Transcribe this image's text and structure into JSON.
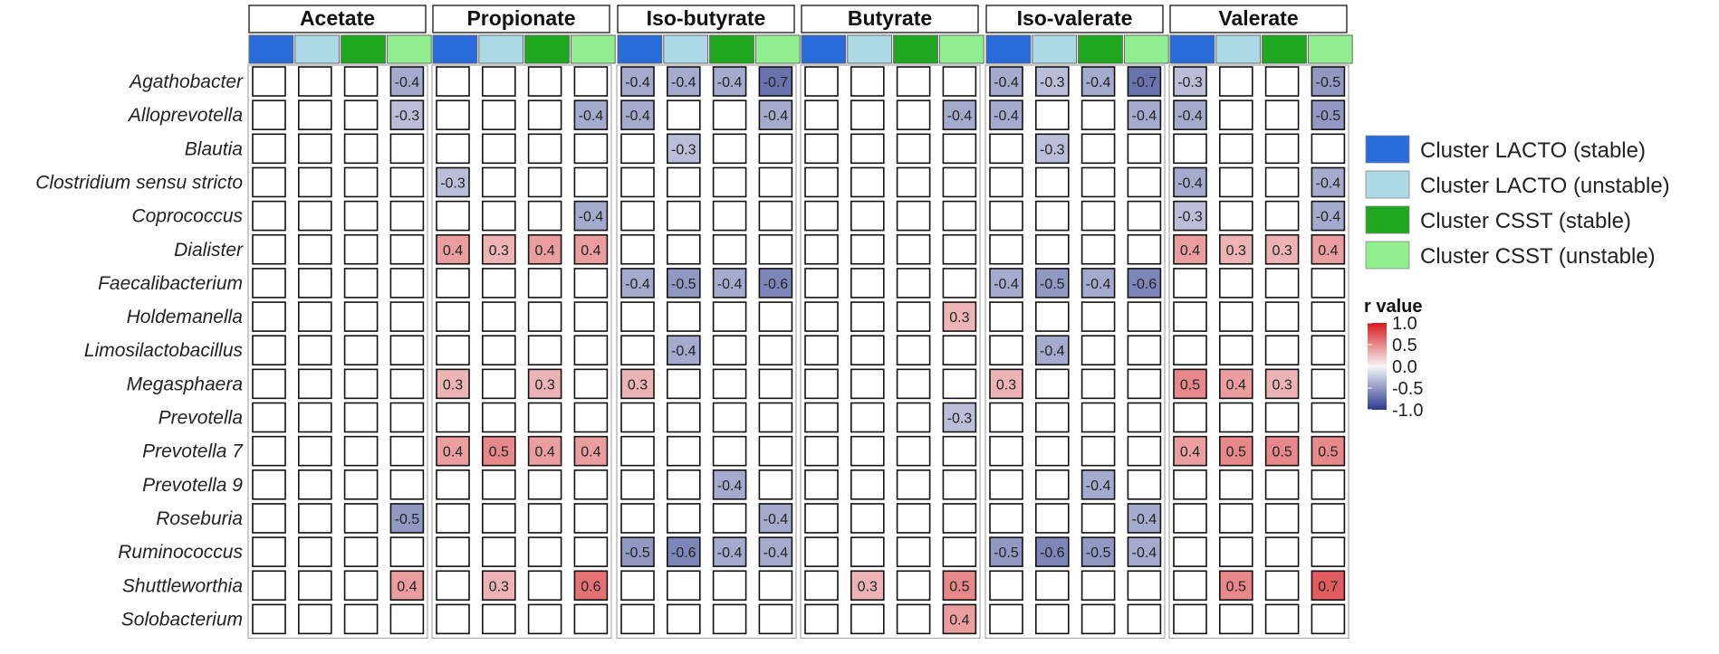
{
  "chart_data": {
    "type": "heatmap",
    "panels": [
      "Acetate",
      "Propionate",
      "Iso-butyrate",
      "Butyrate",
      "Iso-valerate",
      "Valerate"
    ],
    "clusters": [
      {
        "label": "Cluster LACTO (stable)",
        "color": "#2a6bdb"
      },
      {
        "label": "Cluster LACTO (unstable)",
        "color": "#add8e6"
      },
      {
        "label": "Cluster CSST (stable)",
        "color": "#1fa81f"
      },
      {
        "label": "Cluster CSST (unstable)",
        "color": "#90ee90"
      }
    ],
    "rows": [
      "Agathobacter",
      "Alloprevotella",
      "Blautia",
      "Clostridium sensu stricto",
      "Coprococcus",
      "Dialister",
      "Faecalibacterium",
      "Holdemanella",
      "Limosilactobacillus",
      "Megasphaera",
      "Prevotella",
      "Prevotella 7",
      "Prevotella 9",
      "Roseburia",
      "Ruminococcus",
      "Shuttleworthia",
      "Solobacterium"
    ],
    "values": [
      [
        [
          null,
          null,
          null,
          -0.4
        ],
        [
          null,
          null,
          null,
          null
        ],
        [
          -0.4,
          -0.4,
          -0.4,
          -0.7
        ],
        [
          null,
          null,
          null,
          null
        ],
        [
          -0.4,
          -0.3,
          -0.4,
          -0.7
        ],
        [
          -0.3,
          null,
          null,
          -0.5
        ]
      ],
      [
        [
          null,
          null,
          null,
          -0.3
        ],
        [
          null,
          null,
          null,
          -0.4
        ],
        [
          -0.4,
          null,
          null,
          -0.4
        ],
        [
          null,
          null,
          null,
          -0.4
        ],
        [
          -0.4,
          null,
          null,
          -0.4
        ],
        [
          -0.4,
          null,
          null,
          -0.5
        ]
      ],
      [
        [
          null,
          null,
          null,
          null
        ],
        [
          null,
          null,
          null,
          null
        ],
        [
          null,
          -0.3,
          null,
          null
        ],
        [
          null,
          null,
          null,
          null
        ],
        [
          null,
          -0.3,
          null,
          null
        ],
        [
          null,
          null,
          null,
          null
        ]
      ],
      [
        [
          null,
          null,
          null,
          null
        ],
        [
          -0.3,
          null,
          null,
          null
        ],
        [
          null,
          null,
          null,
          null
        ],
        [
          null,
          null,
          null,
          null
        ],
        [
          null,
          null,
          null,
          null
        ],
        [
          -0.4,
          null,
          null,
          -0.4
        ]
      ],
      [
        [
          null,
          null,
          null,
          null
        ],
        [
          null,
          null,
          null,
          -0.4
        ],
        [
          null,
          null,
          null,
          null
        ],
        [
          null,
          null,
          null,
          null
        ],
        [
          null,
          null,
          null,
          null
        ],
        [
          -0.3,
          null,
          null,
          -0.4
        ]
      ],
      [
        [
          null,
          null,
          null,
          null
        ],
        [
          0.4,
          0.3,
          0.4,
          0.4
        ],
        [
          null,
          null,
          null,
          null
        ],
        [
          null,
          null,
          null,
          null
        ],
        [
          null,
          null,
          null,
          null
        ],
        [
          0.4,
          0.3,
          0.3,
          0.4
        ]
      ],
      [
        [
          null,
          null,
          null,
          null
        ],
        [
          null,
          null,
          null,
          null
        ],
        [
          -0.4,
          -0.5,
          -0.4,
          -0.6
        ],
        [
          null,
          null,
          null,
          null
        ],
        [
          -0.4,
          -0.5,
          -0.4,
          -0.6
        ],
        [
          null,
          null,
          null,
          null
        ]
      ],
      [
        [
          null,
          null,
          null,
          null
        ],
        [
          null,
          null,
          null,
          null
        ],
        [
          null,
          null,
          null,
          null
        ],
        [
          null,
          null,
          null,
          0.3
        ],
        [
          null,
          null,
          null,
          null
        ],
        [
          null,
          null,
          null,
          null
        ]
      ],
      [
        [
          null,
          null,
          null,
          null
        ],
        [
          null,
          null,
          null,
          null
        ],
        [
          null,
          -0.4,
          null,
          null
        ],
        [
          null,
          null,
          null,
          null
        ],
        [
          null,
          -0.4,
          null,
          null
        ],
        [
          null,
          null,
          null,
          null
        ]
      ],
      [
        [
          null,
          null,
          null,
          null
        ],
        [
          0.3,
          null,
          0.3,
          null
        ],
        [
          0.3,
          null,
          null,
          null
        ],
        [
          null,
          null,
          null,
          null
        ],
        [
          0.3,
          null,
          null,
          null
        ],
        [
          0.5,
          0.4,
          0.3,
          null
        ]
      ],
      [
        [
          null,
          null,
          null,
          null
        ],
        [
          null,
          null,
          null,
          null
        ],
        [
          null,
          null,
          null,
          null
        ],
        [
          null,
          null,
          null,
          -0.3
        ],
        [
          null,
          null,
          null,
          null
        ],
        [
          null,
          null,
          null,
          null
        ]
      ],
      [
        [
          null,
          null,
          null,
          null
        ],
        [
          0.4,
          0.5,
          0.4,
          0.4
        ],
        [
          null,
          null,
          null,
          null
        ],
        [
          null,
          null,
          null,
          null
        ],
        [
          null,
          null,
          null,
          null
        ],
        [
          0.4,
          0.5,
          0.5,
          0.5
        ]
      ],
      [
        [
          null,
          null,
          null,
          null
        ],
        [
          null,
          null,
          null,
          null
        ],
        [
          null,
          null,
          -0.4,
          null
        ],
        [
          null,
          null,
          null,
          null
        ],
        [
          null,
          null,
          -0.4,
          null
        ],
        [
          null,
          null,
          null,
          null
        ]
      ],
      [
        [
          null,
          null,
          null,
          -0.5
        ],
        [
          null,
          null,
          null,
          null
        ],
        [
          null,
          null,
          null,
          -0.4
        ],
        [
          null,
          null,
          null,
          null
        ],
        [
          null,
          null,
          null,
          -0.4
        ],
        [
          null,
          null,
          null,
          null
        ]
      ],
      [
        [
          null,
          null,
          null,
          null
        ],
        [
          null,
          null,
          null,
          null
        ],
        [
          -0.5,
          -0.6,
          -0.4,
          -0.4
        ],
        [
          null,
          null,
          null,
          null
        ],
        [
          -0.5,
          -0.6,
          -0.5,
          -0.4
        ],
        [
          null,
          null,
          null,
          null
        ]
      ],
      [
        [
          null,
          null,
          null,
          0.4
        ],
        [
          null,
          0.3,
          null,
          0.6
        ],
        [
          null,
          null,
          null,
          null
        ],
        [
          null,
          0.3,
          null,
          0.5
        ],
        [
          null,
          null,
          null,
          null
        ],
        [
          null,
          0.5,
          null,
          0.7
        ]
      ],
      [
        [
          null,
          null,
          null,
          null
        ],
        [
          null,
          null,
          null,
          null
        ],
        [
          null,
          null,
          null,
          null
        ],
        [
          null,
          null,
          null,
          0.4
        ],
        [
          null,
          null,
          null,
          null
        ],
        [
          null,
          null,
          null,
          null
        ]
      ]
    ],
    "legend": {
      "title": "r value",
      "ticks": [
        "1.0",
        "0.5",
        "0.0",
        "-0.5",
        "-1.0"
      ],
      "range": [
        -1.0,
        1.0
      ],
      "colors": {
        "low": "#2b3a8f",
        "mid": "#f7f7f7",
        "high": "#d7191c"
      },
      "placement": "right"
    }
  }
}
